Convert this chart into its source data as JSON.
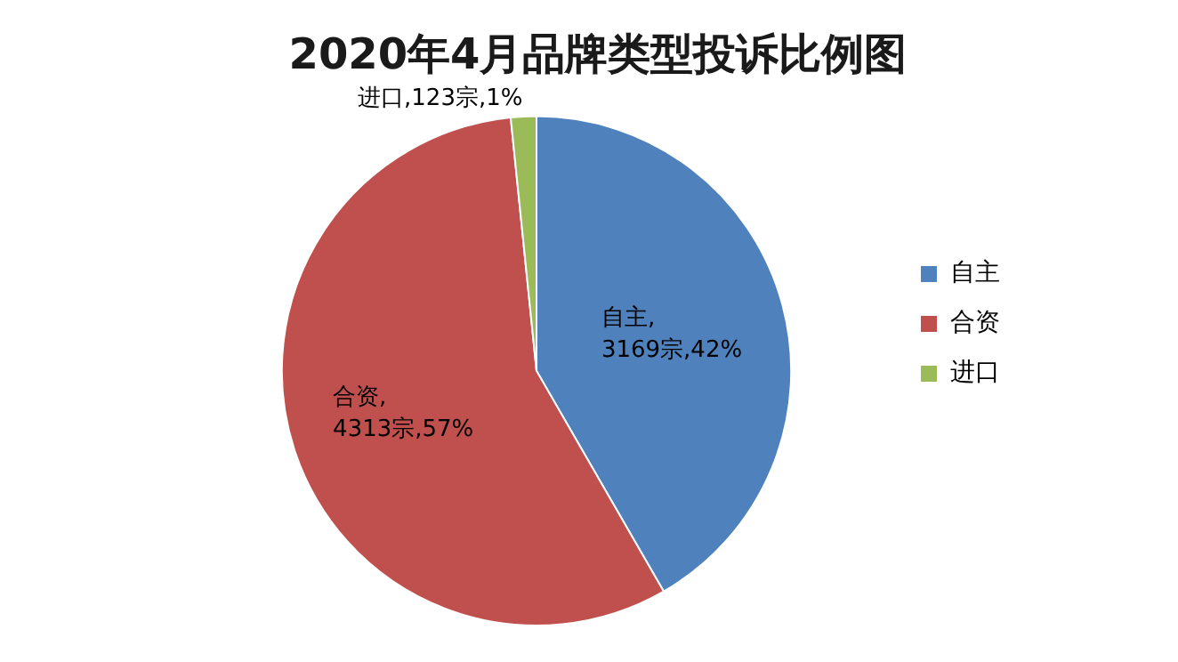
{
  "chart_data": {
    "type": "pie",
    "title": "2020年4月品牌类型投诉比例图",
    "categories": [
      "自主",
      "合资",
      "进口"
    ],
    "values": [
      3169,
      4313,
      123
    ],
    "value_labels": [
      "自主,\n3169宗,42%",
      "合资,\n4313宗,57%",
      "进口,123宗,1%"
    ],
    "colors": [
      "#4f81bd",
      "#c0504d",
      "#9bbb59"
    ],
    "legend": "right"
  }
}
